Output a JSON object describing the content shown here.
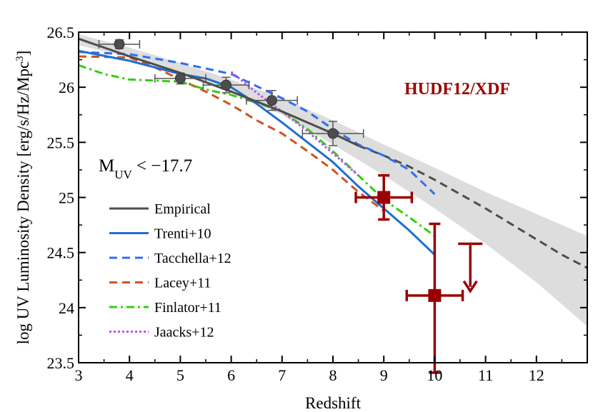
{
  "chart_data": {
    "type": "line",
    "xlabel": "Redshift",
    "ylabel": "log UV Luminosity Density [erg/s/Hz/Mpc",
    "ylabel_sup": "3",
    "ylabel_close": "]",
    "xlim": [
      3,
      13
    ],
    "ylim": [
      23.5,
      26.5
    ],
    "xticks": [
      3,
      4,
      5,
      6,
      7,
      8,
      9,
      10,
      11,
      12
    ],
    "yticks": [
      23.5,
      24,
      24.5,
      25,
      25.5,
      26,
      26.5
    ],
    "ytick_labels": [
      "23.5",
      "24",
      "24.5",
      "25",
      "25.5",
      "26",
      "26.5"
    ],
    "grid": false,
    "legend_position": "left-lower",
    "annotation": {
      "text_main": "M",
      "text_sub": "UV",
      "text_rest": " < −17.7"
    },
    "field_label": {
      "text": "HUDF12/XDF",
      "color": "#990000"
    },
    "band": {
      "color": "#dddddd",
      "x": [
        3,
        4,
        5,
        6,
        7,
        8,
        9,
        10,
        11,
        12,
        13
      ],
      "upper": [
        26.48,
        26.36,
        26.22,
        26.07,
        25.9,
        25.7,
        25.48,
        25.27,
        25.05,
        24.85,
        24.65
      ],
      "lower": [
        26.38,
        26.27,
        26.13,
        25.95,
        25.75,
        25.48,
        25.2,
        24.9,
        24.58,
        24.23,
        23.83
      ]
    },
    "series": [
      {
        "name": "Empirical",
        "color": "#4d4d4d",
        "dash": "solid",
        "x": [
          3,
          4,
          5,
          6,
          7,
          8,
          8.5
        ],
        "y": [
          26.44,
          26.28,
          26.13,
          25.96,
          25.78,
          25.58,
          25.47
        ]
      },
      {
        "name": "Trenti+10",
        "color": "#1f6fcf",
        "dash": "solid",
        "x": [
          3,
          4,
          5,
          5.5,
          6,
          6.5,
          7,
          7.5,
          8,
          8.5,
          9,
          9.5,
          10
        ],
        "y": [
          26.33,
          26.24,
          26.12,
          26.08,
          26.0,
          25.85,
          25.68,
          25.5,
          25.32,
          25.1,
          24.9,
          24.7,
          24.48
        ]
      },
      {
        "name": "Tacchella+12",
        "color": "#2f6ff0",
        "dash": "dashed",
        "x": [
          3,
          4,
          5,
          6,
          7,
          7.5,
          8,
          8.5,
          9,
          9.5,
          10
        ],
        "y": [
          26.32,
          26.3,
          26.22,
          26.12,
          25.9,
          25.78,
          25.62,
          25.48,
          25.38,
          25.25,
          25.03
        ]
      },
      {
        "name": "Lacey+11",
        "color": "#d0521e",
        "dash": "dashed",
        "x": [
          3,
          4,
          4.5,
          5,
          5.5,
          6,
          6.5,
          7,
          7.5,
          8,
          8.5,
          9
        ],
        "y": [
          26.28,
          26.27,
          26.18,
          26.07,
          25.96,
          25.84,
          25.7,
          25.58,
          25.42,
          25.25,
          25.05,
          24.88
        ]
      },
      {
        "name": "Finlator+11",
        "color": "#33cc11",
        "dash": "dashdot",
        "x": [
          3,
          3.5,
          4,
          4.5,
          5,
          5.5,
          6,
          6.5,
          7,
          7.5,
          8,
          8.5,
          9,
          9.5,
          10
        ],
        "y": [
          26.2,
          26.12,
          26.07,
          26.06,
          26.05,
          25.98,
          25.93,
          25.86,
          25.78,
          25.62,
          25.42,
          25.2,
          24.98,
          24.82,
          24.65
        ]
      },
      {
        "name": "Jaacks+12",
        "color": "#bb55ee",
        "dash": "dotted",
        "x": [
          6,
          6.5,
          7,
          7.5,
          8,
          8.5
        ],
        "y": [
          26.14,
          25.95,
          25.78,
          25.6,
          25.4,
          25.2
        ]
      }
    ],
    "extension": {
      "color": "#4d4d4d",
      "dash": "dashed",
      "x": [
        8.5,
        9,
        9.5,
        10,
        10.5,
        11,
        11.5,
        12,
        12.5,
        13
      ],
      "y": [
        25.47,
        25.38,
        25.28,
        25.16,
        25.03,
        24.9,
        24.76,
        24.62,
        24.48,
        24.36
      ]
    },
    "empirical_points": {
      "color": "#4d4d4d",
      "points": [
        {
          "x": 3.8,
          "y": 26.39,
          "xerr": 0.4,
          "yerr": 0.04
        },
        {
          "x": 5.0,
          "y": 26.08,
          "xerr": 0.5,
          "yerr": 0.05
        },
        {
          "x": 5.9,
          "y": 26.02,
          "xerr": 0.45,
          "yerr": 0.07
        },
        {
          "x": 6.8,
          "y": 25.88,
          "xerr": 0.5,
          "yerr": 0.09
        },
        {
          "x": 8.0,
          "y": 25.58,
          "xerr": 0.6,
          "yerr": 0.11
        }
      ]
    },
    "hudf_points": {
      "color": "#990000",
      "points": [
        {
          "x": 9.0,
          "y": 25.0,
          "xerr": 0.55,
          "yerr": 0.2
        },
        {
          "x": 10.0,
          "y": 24.11,
          "xerr": 0.55,
          "yerr_up": 0.65,
          "yerr_down": 0.7
        }
      ]
    },
    "upper_limit": {
      "color": "#990000",
      "x": 10.7,
      "y": 24.58,
      "arrow_to": 24.15
    }
  }
}
